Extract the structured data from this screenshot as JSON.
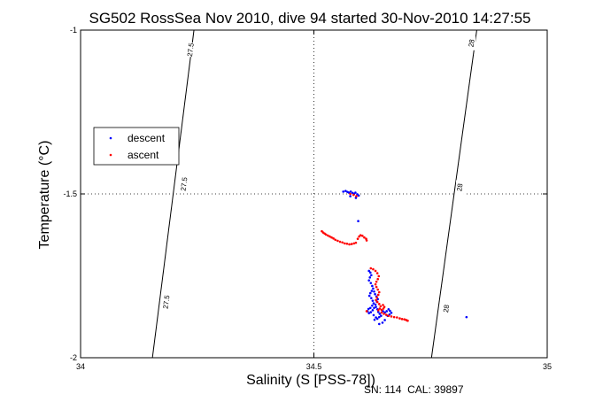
{
  "chart_data": {
    "type": "scatter",
    "title": "SG502 RossSea Nov 2010, dive 94 started 30-Nov-2010 14:27:55",
    "xlabel": "Salinity (S [PSS-78])",
    "ylabel": "Temperature (°C)",
    "xlim": [
      34,
      35
    ],
    "ylim": [
      -2,
      -1
    ],
    "xticks": [
      {
        "value": 34,
        "label": "34"
      },
      {
        "value": 34.5,
        "label": "34.5"
      },
      {
        "value": 35,
        "label": "35"
      }
    ],
    "yticks": [
      {
        "value": -1,
        "label": "-1"
      },
      {
        "value": -1.5,
        "label": "-1.5"
      },
      {
        "value": -2,
        "label": "-2"
      }
    ],
    "grid": "dotted at center ticks",
    "legend": {
      "position": "left",
      "entries": [
        {
          "name": "descent",
          "color": "#0000ff"
        },
        {
          "name": "ascent",
          "color": "#ff0000"
        }
      ]
    },
    "footer": "SN: 114  CAL: 39897",
    "isopycnals": [
      {
        "label": "27.5",
        "points": [
          [
            34.243,
            -1.0
          ],
          [
            34.154,
            -2.0
          ]
        ],
        "label_positions": [
          [
            34.236,
            -1.06
          ],
          [
            34.222,
            -1.47
          ],
          [
            34.184,
            -1.83
          ]
        ]
      },
      {
        "label": "28",
        "points": [
          [
            34.849,
            -1.0
          ],
          [
            34.752,
            -2.0
          ]
        ],
        "label_positions": [
          [
            34.838,
            -1.04
          ],
          [
            34.813,
            -1.48
          ],
          [
            34.784,
            -1.85
          ]
        ]
      }
    ],
    "series": [
      {
        "name": "descent",
        "color": "#0000ff",
        "points": [
          [
            34.563,
            -1.493
          ],
          [
            34.568,
            -1.491
          ],
          [
            34.572,
            -1.494
          ],
          [
            34.575,
            -1.496
          ],
          [
            34.579,
            -1.493
          ],
          [
            34.583,
            -1.497
          ],
          [
            34.586,
            -1.5
          ],
          [
            34.589,
            -1.496
          ],
          [
            34.593,
            -1.501
          ],
          [
            34.596,
            -1.505
          ],
          [
            34.59,
            -1.512
          ],
          [
            34.578,
            -1.507
          ],
          [
            34.595,
            -1.583
          ],
          [
            34.618,
            -1.735
          ],
          [
            34.621,
            -1.74
          ],
          [
            34.623,
            -1.748
          ],
          [
            34.62,
            -1.755
          ],
          [
            34.618,
            -1.764
          ],
          [
            34.622,
            -1.772
          ],
          [
            34.625,
            -1.781
          ],
          [
            34.627,
            -1.789
          ],
          [
            34.624,
            -1.796
          ],
          [
            34.621,
            -1.803
          ],
          [
            34.619,
            -1.811
          ],
          [
            34.623,
            -1.818
          ],
          [
            34.626,
            -1.826
          ],
          [
            34.628,
            -1.834
          ],
          [
            34.625,
            -1.841
          ],
          [
            34.621,
            -1.848
          ],
          [
            34.617,
            -1.851
          ],
          [
            34.615,
            -1.858
          ],
          [
            34.618,
            -1.864
          ],
          [
            34.622,
            -1.861
          ],
          [
            34.626,
            -1.855
          ],
          [
            34.629,
            -1.848
          ],
          [
            34.632,
            -1.838
          ],
          [
            34.635,
            -1.829
          ],
          [
            34.637,
            -1.821
          ],
          [
            34.634,
            -1.813
          ],
          [
            34.631,
            -1.806
          ],
          [
            34.629,
            -1.798
          ],
          [
            34.633,
            -1.845
          ],
          [
            34.636,
            -1.852
          ],
          [
            34.638,
            -1.86
          ],
          [
            34.641,
            -1.866
          ],
          [
            34.644,
            -1.872
          ],
          [
            34.64,
            -1.876
          ],
          [
            34.636,
            -1.881
          ],
          [
            34.633,
            -1.877
          ],
          [
            34.648,
            -1.858
          ],
          [
            34.652,
            -1.862
          ],
          [
            34.656,
            -1.858
          ],
          [
            34.66,
            -1.852
          ],
          [
            34.663,
            -1.857
          ],
          [
            34.666,
            -1.863
          ],
          [
            34.662,
            -1.868
          ],
          [
            34.658,
            -1.872
          ],
          [
            34.652,
            -1.885
          ],
          [
            34.647,
            -1.893
          ],
          [
            34.64,
            -1.897
          ],
          [
            34.628,
            -1.87
          ],
          [
            34.63,
            -1.884
          ],
          [
            34.827,
            -1.876
          ]
        ]
      },
      {
        "name": "ascent",
        "color": "#ff0000",
        "points": [
          [
            34.578,
            -1.5
          ],
          [
            34.585,
            -1.503
          ],
          [
            34.591,
            -1.507
          ],
          [
            34.517,
            -1.614
          ],
          [
            34.52,
            -1.618
          ],
          [
            34.523,
            -1.621
          ],
          [
            34.526,
            -1.624
          ],
          [
            34.53,
            -1.627
          ],
          [
            34.534,
            -1.63
          ],
          [
            34.538,
            -1.633
          ],
          [
            34.542,
            -1.636
          ],
          [
            34.546,
            -1.64
          ],
          [
            34.551,
            -1.643
          ],
          [
            34.556,
            -1.646
          ],
          [
            34.561,
            -1.648
          ],
          [
            34.566,
            -1.651
          ],
          [
            34.571,
            -1.652
          ],
          [
            34.576,
            -1.654
          ],
          [
            34.581,
            -1.653
          ],
          [
            34.586,
            -1.651
          ],
          [
            34.59,
            -1.649
          ],
          [
            34.594,
            -1.637
          ],
          [
            34.597,
            -1.63
          ],
          [
            34.6,
            -1.626
          ],
          [
            34.604,
            -1.628
          ],
          [
            34.608,
            -1.633
          ],
          [
            34.612,
            -1.637
          ],
          [
            34.613,
            -1.642
          ],
          [
            34.622,
            -1.727
          ],
          [
            34.627,
            -1.73
          ],
          [
            34.632,
            -1.735
          ],
          [
            34.636,
            -1.742
          ],
          [
            34.639,
            -1.751
          ],
          [
            34.637,
            -1.76
          ],
          [
            34.634,
            -1.768
          ],
          [
            34.632,
            -1.776
          ],
          [
            34.634,
            -1.784
          ],
          [
            34.637,
            -1.792
          ],
          [
            34.64,
            -1.8
          ],
          [
            34.638,
            -1.808
          ],
          [
            34.635,
            -1.816
          ],
          [
            34.633,
            -1.824
          ],
          [
            34.636,
            -1.83
          ],
          [
            34.64,
            -1.836
          ],
          [
            34.643,
            -1.843
          ],
          [
            34.641,
            -1.85
          ],
          [
            34.638,
            -1.855
          ],
          [
            34.645,
            -1.862
          ],
          [
            34.65,
            -1.866
          ],
          [
            34.655,
            -1.869
          ],
          [
            34.66,
            -1.872
          ],
          [
            34.666,
            -1.874
          ],
          [
            34.672,
            -1.876
          ],
          [
            34.678,
            -1.877
          ],
          [
            34.684,
            -1.88
          ],
          [
            34.689,
            -1.882
          ],
          [
            34.694,
            -1.883
          ],
          [
            34.698,
            -1.885
          ],
          [
            34.701,
            -1.887
          ],
          [
            34.645,
            -1.854
          ],
          [
            34.649,
            -1.85
          ],
          [
            34.651,
            -1.845
          ],
          [
            34.648,
            -1.839
          ],
          [
            34.613,
            -1.858
          ]
        ]
      }
    ]
  }
}
